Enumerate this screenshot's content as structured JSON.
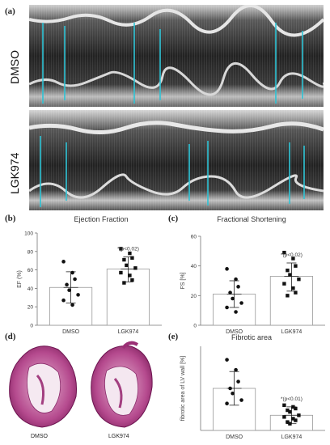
{
  "labels": {
    "a": "(a)",
    "b": "(b)",
    "c": "(c)",
    "d": "(d)",
    "e": "(e)"
  },
  "echo": {
    "row1": "DMSO",
    "row2": "LGK974",
    "colors": {
      "marker": "#2ec4d6"
    }
  },
  "histology": {
    "left_caption": "DMSO",
    "right_caption": "LGK974"
  },
  "chart_data": [
    {
      "type": "scatter",
      "title": "Ejection Fraction",
      "ylabel": "EF (%)",
      "categories": [
        "DMSO",
        "LGK974"
      ],
      "ylim": [
        0,
        100
      ],
      "yticks": [
        0,
        20,
        40,
        60,
        80,
        100
      ],
      "bars": [
        41,
        61
      ],
      "errors": [
        [
          24,
          58
        ],
        [
          47,
          74
        ]
      ],
      "annotation": "*(p<0.02)",
      "points": [
        [
          69,
          57,
          50,
          44,
          38,
          33,
          27,
          22
        ],
        [
          83,
          78,
          73,
          71,
          65,
          62,
          57,
          54,
          49,
          46
        ]
      ]
    },
    {
      "type": "scatter",
      "title": "Fractional  Shortening",
      "ylabel": "FS [%]",
      "categories": [
        "DMSO",
        "LGK974"
      ],
      "ylim": [
        0,
        60
      ],
      "yticks": [
        0,
        20,
        40,
        60
      ],
      "bars": [
        21,
        33
      ],
      "errors": [
        [
          12,
          30
        ],
        [
          23,
          42
        ]
      ],
      "annotation": "*(p<0.02)",
      "points": [
        [
          38,
          31,
          26,
          22,
          18,
          15,
          12,
          9
        ],
        [
          49,
          45,
          40,
          37,
          34,
          31,
          28,
          25,
          22,
          20
        ]
      ]
    },
    {
      "type": "scatter",
      "title": "Fibrotic area",
      "ylabel": "fibrotic area of LV wall [%]",
      "categories": [
        "DMSO",
        "LGK974"
      ],
      "ylim": [
        0,
        50
      ],
      "yticks": [],
      "bars": [
        25,
        9
      ],
      "errors": [
        [
          15,
          35
        ],
        [
          4,
          14
        ]
      ],
      "annotation": "*(p<0.01)",
      "points": [
        [
          42,
          36,
          29,
          25,
          22,
          18,
          16
        ],
        [
          15,
          14,
          13,
          12,
          11,
          9,
          8,
          7,
          6,
          5,
          4
        ]
      ]
    }
  ]
}
